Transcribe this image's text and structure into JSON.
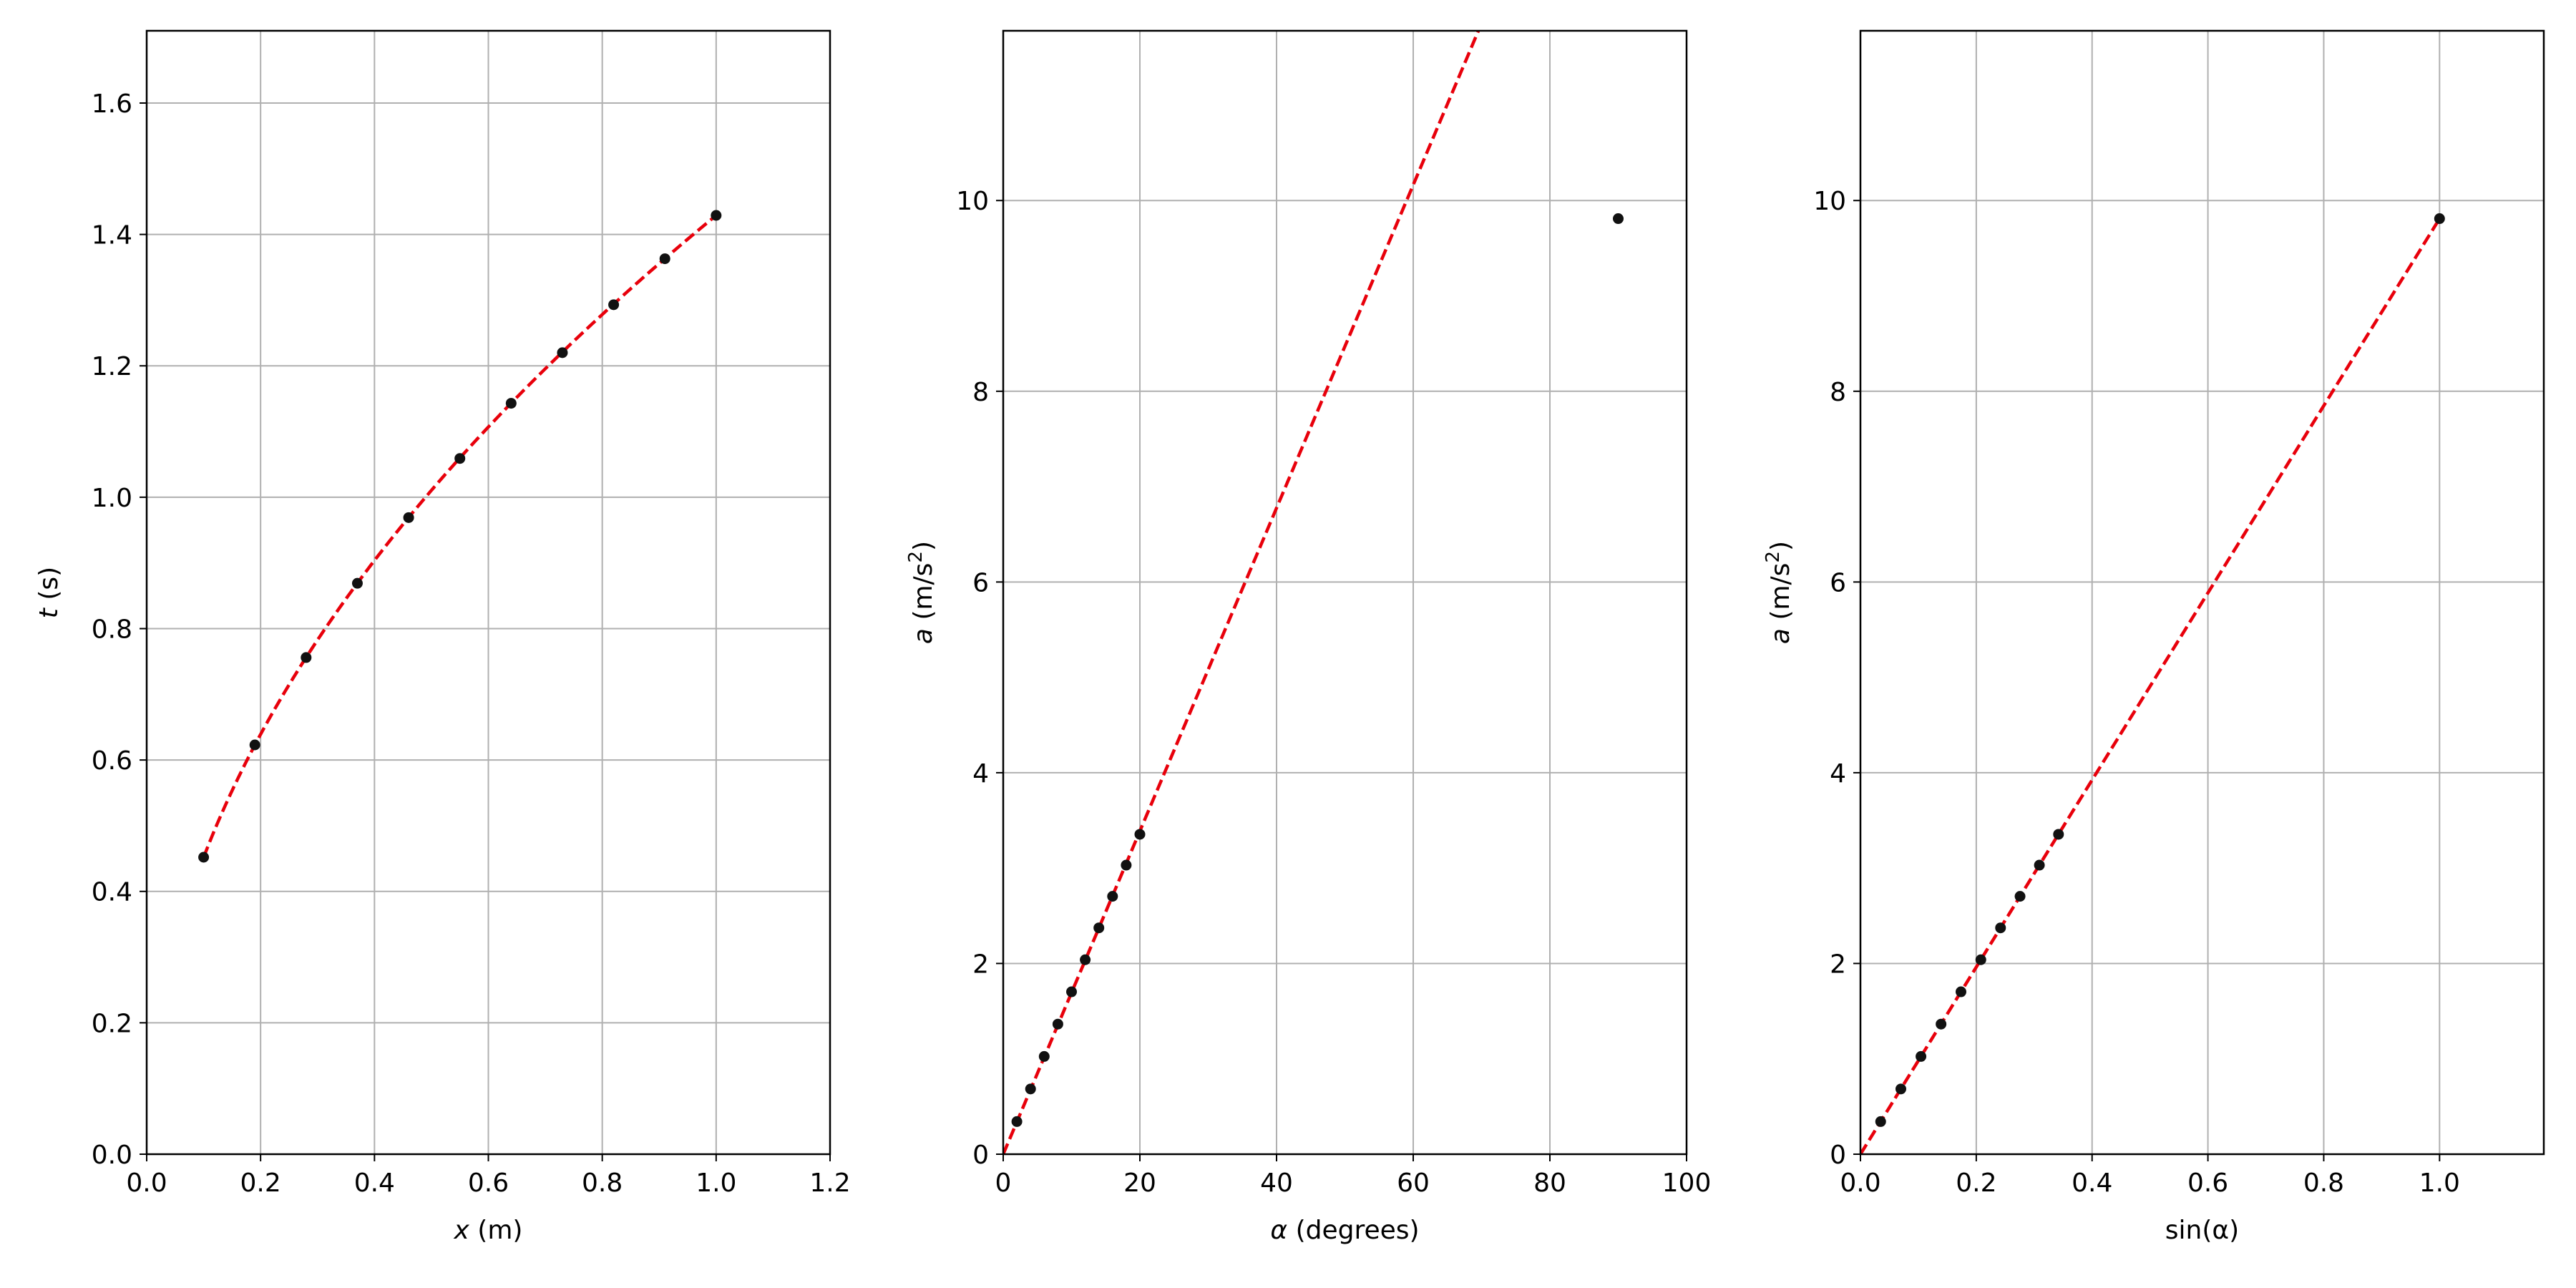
{
  "chart_data": [
    {
      "type": "scatter",
      "xlabel": {
        "var": "x",
        "unit": " (m)"
      },
      "ylabel": {
        "var": "t",
        "unit": " (s)"
      },
      "xlim": [
        0.0,
        1.2
      ],
      "ylim": [
        0.0,
        1.71
      ],
      "xticks": [
        0.0,
        0.2,
        0.4,
        0.6,
        0.8,
        1.0,
        1.2
      ],
      "yticks": [
        0.0,
        0.2,
        0.4,
        0.6,
        0.8,
        1.0,
        1.2,
        1.4,
        1.6
      ],
      "tick_decimals": 1,
      "grid": true,
      "points": {
        "x": [
          0.1,
          0.19,
          0.28,
          0.37,
          0.46,
          0.55,
          0.64,
          0.73,
          0.82,
          0.91,
          1.0
        ],
        "y": [
          0.452,
          0.623,
          0.756,
          0.869,
          0.969,
          1.059,
          1.143,
          1.22,
          1.293,
          1.363,
          1.429
        ]
      },
      "fit": {
        "model": "sqrt",
        "coef": 1.429,
        "x_range": [
          0.1,
          1.0
        ],
        "color": "#e8000b",
        "style": "dashed"
      }
    },
    {
      "type": "scatter",
      "xlabel": {
        "var": "α",
        "unit": " (degrees)"
      },
      "ylabel": {
        "var": "a",
        "unit": " (m/s",
        "sup": "2",
        "tail": ")"
      },
      "xlim": [
        0,
        100
      ],
      "ylim": [
        0,
        11.78
      ],
      "xticks": [
        0,
        20,
        40,
        60,
        80,
        100
      ],
      "yticks": [
        0,
        2,
        4,
        6,
        8,
        10
      ],
      "tick_decimals": 0,
      "grid": true,
      "points": {
        "x": [
          2,
          4,
          6,
          8,
          10,
          12,
          14,
          16,
          18,
          20,
          90
        ],
        "y": [
          0.342,
          0.684,
          1.025,
          1.364,
          1.703,
          2.039,
          2.373,
          2.704,
          3.031,
          3.354,
          9.81
        ]
      },
      "fit": {
        "model": "linear",
        "slope": 0.1694,
        "intercept": 0,
        "x_range": [
          0,
          100
        ],
        "color": "#e8000b",
        "style": "dashed"
      }
    },
    {
      "type": "scatter",
      "xlabel": {
        "var": "",
        "unit": "sin(α)"
      },
      "ylabel": {
        "var": "a",
        "unit": " (m/s",
        "sup": "2",
        "tail": ")"
      },
      "xlim": [
        0.0,
        1.18
      ],
      "ylim": [
        0,
        11.78
      ],
      "xticks": [
        0.0,
        0.2,
        0.4,
        0.6,
        0.8,
        1.0
      ],
      "yticks": [
        0,
        2,
        4,
        6,
        8,
        10
      ],
      "tick_decimals_x": 1,
      "tick_decimals": 0,
      "grid": true,
      "points": {
        "x": [
          0.0349,
          0.0698,
          0.1045,
          0.1392,
          0.1736,
          0.2079,
          0.2419,
          0.2756,
          0.309,
          0.342,
          1.0
        ],
        "y": [
          0.342,
          0.684,
          1.025,
          1.364,
          1.703,
          2.039,
          2.373,
          2.704,
          3.031,
          3.354,
          9.81
        ]
      },
      "fit": {
        "model": "linear",
        "slope": 9.81,
        "intercept": 0,
        "x_range": [
          0,
          1.0
        ],
        "color": "#e8000b",
        "style": "dashed"
      }
    }
  ]
}
